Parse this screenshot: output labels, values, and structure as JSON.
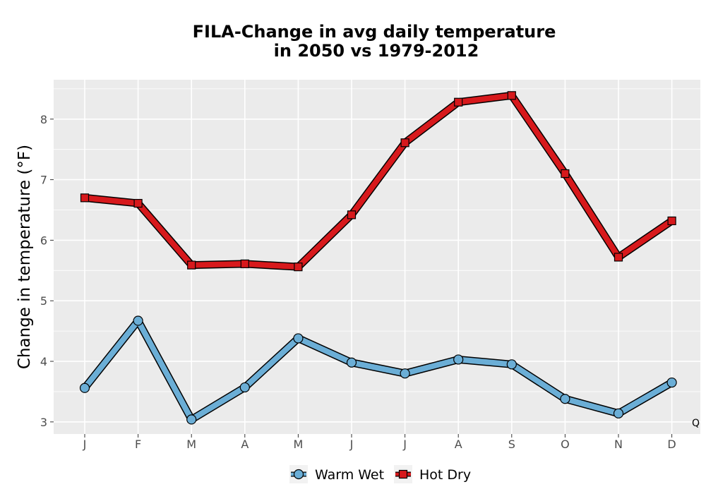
{
  "chart_data": {
    "type": "line",
    "title": [
      "FILA-Change in avg daily temperature",
      "in 2050 vs 1979-2012"
    ],
    "xlabel": "",
    "ylabel": "Change in temperature (°F)",
    "categories": [
      "J",
      "F",
      "M",
      "A",
      "M",
      "J",
      "J",
      "A",
      "S",
      "O",
      "N",
      "D"
    ],
    "ylim": [
      2.8,
      8.65
    ],
    "yticks": [
      3,
      4,
      5,
      6,
      7,
      8
    ],
    "grid": true,
    "legend_position": "bottom",
    "corner_label": "Q",
    "series": [
      {
        "name": "Warm Wet",
        "marker": "circle",
        "color": "#6baed6",
        "values": [
          3.56,
          4.67,
          3.04,
          3.57,
          4.38,
          3.98,
          3.8,
          4.03,
          3.95,
          3.38,
          3.14,
          3.65
        ]
      },
      {
        "name": "Hot Dry",
        "marker": "square",
        "color": "#d7191c",
        "values": [
          6.7,
          6.61,
          5.59,
          5.61,
          5.56,
          6.42,
          7.61,
          8.28,
          8.39,
          7.1,
          5.72,
          6.32
        ]
      }
    ]
  }
}
